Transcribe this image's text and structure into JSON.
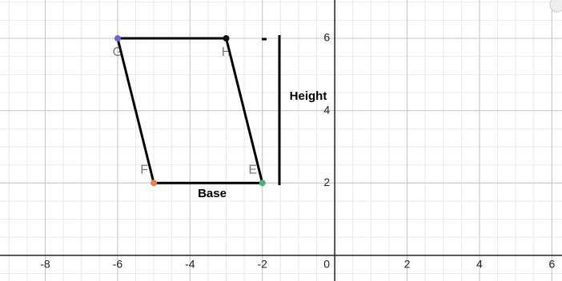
{
  "chart_data": {
    "type": "polygon",
    "points": [
      {
        "label": "G",
        "x": -6,
        "y": 6,
        "color": "#6a6ad0"
      },
      {
        "label": "H",
        "x": -3,
        "y": 6,
        "color": "#111111"
      },
      {
        "label": "E",
        "x": -2,
        "y": 2,
        "color": "#4caf7a"
      },
      {
        "label": "F",
        "x": -5,
        "y": 2,
        "color": "#e8834a"
      }
    ],
    "annotations": [
      "Height",
      "Base"
    ],
    "xlim": [
      -9.25,
      6.28
    ],
    "ylim": [
      -0.71,
      7.06
    ],
    "xticks": [
      -8,
      -6,
      -4,
      -2,
      0,
      2,
      4,
      6
    ],
    "yticks": [
      2,
      4,
      6
    ],
    "grid": true,
    "minor_grid": 0.5
  }
}
